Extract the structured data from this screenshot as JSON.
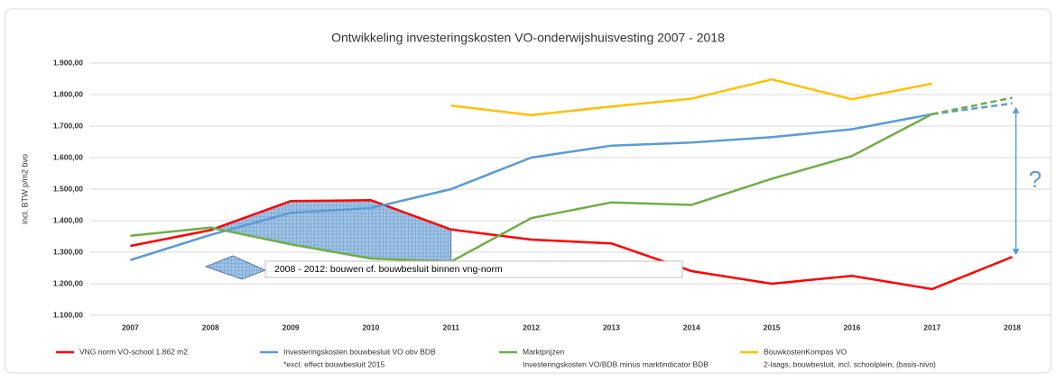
{
  "chart_data": {
    "type": "line",
    "title": "Ontwikkeling investeringskosten VO-onderwijshuisvesting 2007 - 2018",
    "y_label": "incl. BTW p/m2 bvo",
    "categories": [
      "2007",
      "2008",
      "2009",
      "2010",
      "2011",
      "2012",
      "2013",
      "2014",
      "2015",
      "2016",
      "2017",
      "2018"
    ],
    "ylim": [
      1100,
      1900
    ],
    "yticks": [
      {
        "value": 1100,
        "label": "1.100,00"
      },
      {
        "value": 1200,
        "label": "1.200,00"
      },
      {
        "value": 1300,
        "label": "1.300,00"
      },
      {
        "value": 1400,
        "label": "1.400,00"
      },
      {
        "value": 1500,
        "label": "1.500,00"
      },
      {
        "value": 1600,
        "label": "1.600,00"
      },
      {
        "value": 1700,
        "label": "1.700,00"
      },
      {
        "value": 1800,
        "label": "1.800,00"
      },
      {
        "value": 1900,
        "label": "1.900,00"
      }
    ],
    "grid": true,
    "series": [
      {
        "name": "VNG norm VO-school 1.862 m2",
        "color": "#ff0000",
        "values": [
          1320,
          1370,
          1462,
          1465,
          1372,
          1340,
          1328,
          1240,
          1200,
          1225,
          1183,
          1285
        ]
      },
      {
        "name": "Investeringskosten bouwbesluit VO obv BDB",
        "note": "*excl. effect bouwbesluit 2015",
        "color": "#5b9bd5",
        "dashed_last_segment": true,
        "values": [
          1275,
          1355,
          1425,
          1440,
          1500,
          1600,
          1638,
          1648,
          1665,
          1690,
          1738,
          1772
        ]
      },
      {
        "name": "Marktprijzen",
        "note": "Investeringskosten VO/BDB minus marktindicator BDB",
        "color": "#70ad47",
        "dashed_last_segment": true,
        "values": [
          1352,
          1378,
          1325,
          1280,
          1270,
          1408,
          1458,
          1450,
          1533,
          1605,
          1738,
          1790
        ]
      },
      {
        "name": "BouwkostenKompas VO",
        "note": "2-laags, bouwbesluit, incl. schoolplein, (basis-nivo)",
        "color": "#ffc000",
        "values": [
          null,
          null,
          null,
          null,
          1765,
          1735,
          1762,
          1787,
          1848,
          1785,
          1835,
          null
        ]
      }
    ],
    "annotations": [
      "2008 - 2012: bouwen cf. bouwbesluit binnen vng-norm",
      "?"
    ]
  }
}
